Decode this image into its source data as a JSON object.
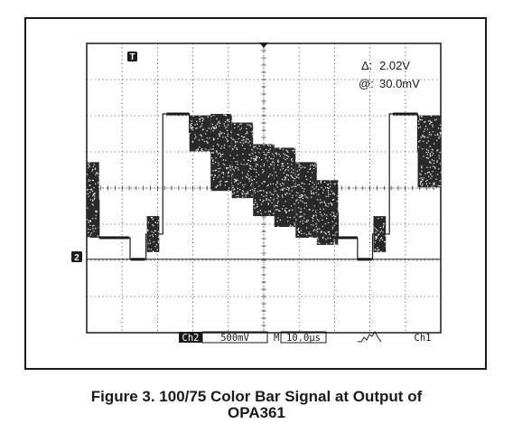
{
  "chart_data": {
    "type": "oscilloscope",
    "divisions": {
      "x": 10,
      "y": 8
    },
    "trace_ground_marker": "2",
    "trigger_marker": "T",
    "cursor_readout": {
      "delta_label": "Δ:",
      "delta_value": "2.02V",
      "at_label": "@:",
      "at_value": "30.0mV"
    },
    "status_bar": {
      "channel": "Ch2",
      "volts_per_div": "500mV",
      "time_prefix": "M",
      "time_per_div": "10.0µs",
      "trigger_source": "Ch1"
    },
    "units": {
      "y": "V",
      "x": "µs"
    },
    "ylim": [
      -1.02,
      3.0
    ],
    "xlim": [
      0,
      100
    ],
    "waveform_segments": [
      {
        "t": [
          0.0,
          3.5
        ],
        "low": 0.3,
        "high": 1.35,
        "kind": "burst"
      },
      {
        "t": [
          3.5,
          12.0
        ],
        "low": 0.3,
        "high": 0.3,
        "kind": "level"
      },
      {
        "t": [
          12.5,
          16.5
        ],
        "low": 0.0,
        "high": 0.0,
        "kind": "sync"
      },
      {
        "t": [
          17.0,
          20.5
        ],
        "low": 0.1,
        "high": 0.6,
        "kind": "burst"
      },
      {
        "t": [
          22.5,
          29.0
        ],
        "low": 2.02,
        "high": 2.02,
        "kind": "level"
      },
      {
        "t": [
          29.0,
          35.0
        ],
        "low": 1.5,
        "high": 2.0,
        "kind": "bar"
      },
      {
        "t": [
          35.0,
          41.0
        ],
        "low": 0.95,
        "high": 2.02,
        "kind": "bar"
      },
      {
        "t": [
          41.0,
          47.0
        ],
        "low": 0.85,
        "high": 1.9,
        "kind": "bar"
      },
      {
        "t": [
          47.0,
          53.0
        ],
        "low": 0.6,
        "high": 1.6,
        "kind": "bar"
      },
      {
        "t": [
          53.0,
          59.0
        ],
        "low": 0.45,
        "high": 1.55,
        "kind": "bar"
      },
      {
        "t": [
          59.0,
          65.0
        ],
        "low": 0.3,
        "high": 1.35,
        "kind": "bar"
      },
      {
        "t": [
          65.0,
          71.0
        ],
        "low": 0.2,
        "high": 1.1,
        "kind": "bar"
      },
      {
        "t": [
          71.0,
          76.5
        ],
        "low": 0.3,
        "high": 0.3,
        "kind": "level"
      },
      {
        "t": [
          76.5,
          80.5
        ],
        "low": 0.0,
        "high": 0.0,
        "kind": "sync"
      },
      {
        "t": [
          81.0,
          84.5
        ],
        "low": 0.1,
        "high": 0.6,
        "kind": "burst"
      },
      {
        "t": [
          86.5,
          93.5
        ],
        "low": 2.02,
        "high": 2.02,
        "kind": "level"
      },
      {
        "t": [
          93.5,
          100.0
        ],
        "low": 1.0,
        "high": 2.0,
        "kind": "bar"
      }
    ]
  },
  "caption": {
    "line1": "Figure 3. 100/75 Color Bar Signal at Output of",
    "line2": "OPA361"
  }
}
